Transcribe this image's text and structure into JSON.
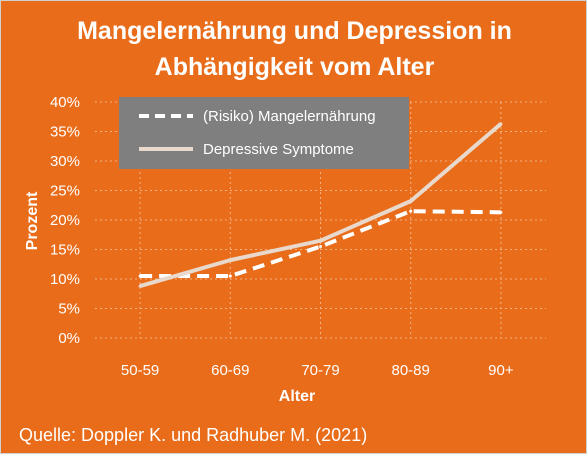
{
  "title": {
    "line1": "Mangelernährung und Depression in",
    "line2": "Abhängigkeit vom Alter"
  },
  "source": "Quelle: Doppler K. und Radhuber M. (2021)",
  "colors": {
    "background": "#e86c1a",
    "series_malnutrition": "#ffffff",
    "series_depression": "#e8d9cc",
    "legend_box": "#7f7f7f",
    "gridlines": "#f4b183"
  },
  "chart_data": {
    "type": "line",
    "xlabel": "Alter",
    "ylabel": "Prozent",
    "categories": [
      "50-59",
      "60-69",
      "70-79",
      "80-89",
      "90+"
    ],
    "ylim": [
      0,
      40
    ],
    "yticks": [
      "0%",
      "5%",
      "10%",
      "15%",
      "20%",
      "25%",
      "30%",
      "35%",
      "40%"
    ],
    "grid": "dotted horizontal and vertical",
    "legend_position": "top-left",
    "series": [
      {
        "name": "(Risiko) Mangelernährung",
        "style": "dashed",
        "values": [
          10.5,
          10.5,
          15.5,
          21.5,
          21.3
        ]
      },
      {
        "name": "Depressive Symptome",
        "style": "solid",
        "values": [
          8.8,
          13.2,
          16.5,
          23.2,
          36.3
        ]
      }
    ]
  }
}
